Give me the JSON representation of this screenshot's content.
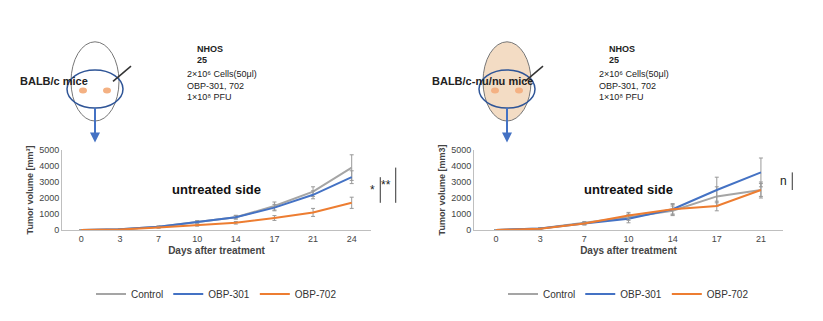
{
  "chart_data": [
    {
      "type": "line",
      "title": "untreated side",
      "annotations": [
        "BALB/c mice",
        "NHOS",
        "25",
        "2×10⁶ Cells(50μl)",
        "OBP-301, 702",
        "1×10⁸ PFU"
      ],
      "x_label": "Days after treatment",
      "y_label": "Tumor volume [mm³]",
      "categories": [
        "0",
        "3",
        "7",
        "10",
        "14",
        "17",
        "21",
        "24"
      ],
      "series": [
        {
          "name": "Control",
          "color": "#a5a5a5",
          "values": [
            0,
            50,
            200,
            500,
            800,
            1500,
            2400,
            3900
          ],
          "error": [
            0,
            20,
            50,
            80,
            120,
            250,
            300,
            800
          ]
        },
        {
          "name": "OBP-301",
          "color": "#4472c4",
          "values": [
            0,
            50,
            200,
            500,
            800,
            1400,
            2200,
            3300
          ],
          "error": [
            0,
            20,
            50,
            70,
            100,
            200,
            250,
            400
          ]
        },
        {
          "name": "OBP-702",
          "color": "#ed7d31",
          "values": [
            0,
            30,
            150,
            300,
            450,
            750,
            1100,
            1700
          ],
          "error": [
            0,
            10,
            40,
            60,
            80,
            150,
            250,
            350
          ]
        }
      ],
      "significance": [
        {
          "text": "*",
          "from": "OBP-301",
          "to": "OBP-702"
        },
        {
          "text": "**",
          "from": "Control",
          "to": "OBP-702"
        }
      ],
      "ylim": [
        0,
        5000
      ],
      "yticks": [
        0,
        1000,
        2000,
        3000,
        4000,
        5000
      ],
      "grid": false,
      "legend": "bottom",
      "marker": "none",
      "line_style": "solid"
    },
    {
      "type": "line",
      "title": "untreated side",
      "annotations": [
        "BALB/c-nu/nu mice",
        "NHOS",
        "25",
        "2×10⁶ Cells(50μl)",
        "OBP-301, 702",
        "1×10⁸ PFU"
      ],
      "x_label": "Days after treatment",
      "y_label": "Tumor volume [mm3]",
      "categories": [
        "0",
        "3",
        "7",
        "10",
        "14",
        "17",
        "21"
      ],
      "series": [
        {
          "name": "Control",
          "color": "#a5a5a5",
          "values": [
            0,
            100,
            450,
            800,
            1200,
            2100,
            2500
          ],
          "error": [
            0,
            40,
            80,
            200,
            300,
            600,
            500
          ]
        },
        {
          "name": "OBP-301",
          "color": "#4472c4",
          "values": [
            0,
            100,
            400,
            700,
            1300,
            2500,
            3600
          ],
          "error": [
            0,
            40,
            80,
            250,
            350,
            800,
            900
          ]
        },
        {
          "name": "OBP-702",
          "color": "#ed7d31",
          "values": [
            0,
            80,
            400,
            900,
            1300,
            1500,
            2500
          ],
          "error": [
            0,
            30,
            80,
            200,
            300,
            300,
            400
          ]
        }
      ],
      "significance": [
        {
          "text": "n",
          "from": "OBP-301",
          "to": "OBP-702"
        }
      ],
      "ylim": [
        0,
        5000
      ],
      "yticks": [
        0,
        1000,
        2000,
        3000,
        4000,
        5000
      ],
      "grid": false,
      "legend": "bottom",
      "marker": "none",
      "line_style": "solid"
    }
  ]
}
